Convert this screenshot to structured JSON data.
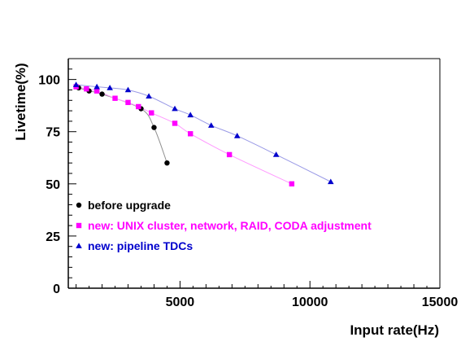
{
  "chart_data": {
    "type": "scatter",
    "xlabel": "Input rate(Hz)",
    "ylabel": "Livetime(%)",
    "xlim": [
      700,
      15000
    ],
    "ylim": [
      0,
      110
    ],
    "xticks": [
      {
        "value": 5000,
        "label": "5000"
      },
      {
        "value": 10000,
        "label": "10000"
      },
      {
        "value": 15000,
        "label": "15000"
      }
    ],
    "yticks": [
      {
        "value": 0,
        "label": "0"
      },
      {
        "value": 25,
        "label": "25"
      },
      {
        "value": 50,
        "label": "50"
      },
      {
        "value": 75,
        "label": "75"
      },
      {
        "value": 100,
        "label": "100"
      }
    ],
    "grid": false,
    "legend_position": "bottom-left",
    "series": [
      {
        "name": "before upgrade",
        "marker": "circle",
        "color": "#000000",
        "curve_color": "#909090",
        "points": [
          [
            1100,
            96
          ],
          [
            1500,
            94.5
          ],
          [
            2000,
            93
          ],
          [
            3500,
            86
          ],
          [
            4000,
            77
          ],
          [
            4500,
            60
          ]
        ]
      },
      {
        "name": "new: UNIX cluster, network, RAID, CODA adjustment",
        "marker": "square",
        "color": "#ff00ff",
        "curve_color": "#ff99ff",
        "points": [
          [
            1000,
            96.5
          ],
          [
            1400,
            95.5
          ],
          [
            1800,
            94.5
          ],
          [
            2500,
            91
          ],
          [
            3000,
            89
          ],
          [
            3400,
            87
          ],
          [
            3900,
            84
          ],
          [
            4800,
            79
          ],
          [
            5400,
            74
          ],
          [
            6900,
            64
          ],
          [
            9300,
            50
          ]
        ]
      },
      {
        "name": "new: pipeline TDCs",
        "marker": "triangle",
        "color": "#0000cc",
        "curve_color": "#9999e6",
        "points": [
          [
            1000,
            97.5
          ],
          [
            1800,
            96.5
          ],
          [
            2300,
            96
          ],
          [
            3000,
            95
          ],
          [
            3800,
            92
          ],
          [
            4800,
            86
          ],
          [
            5400,
            83
          ],
          [
            6200,
            78
          ],
          [
            7200,
            73
          ],
          [
            8700,
            64
          ],
          [
            10800,
            51
          ]
        ]
      }
    ]
  }
}
